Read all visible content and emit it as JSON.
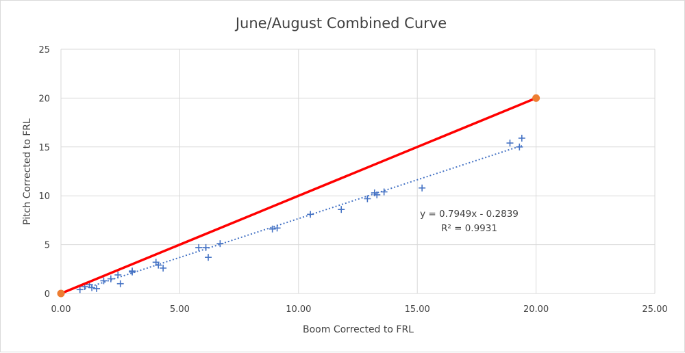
{
  "chart_data": {
    "type": "scatter",
    "title": "June/August Combined Curve",
    "xlabel": "Boom Corrected to FRL",
    "ylabel": "Pitch Corrected to FRL",
    "xlim": [
      0,
      25
    ],
    "ylim": [
      0,
      25
    ],
    "x_ticks": [
      "0.00",
      "5.00",
      "10.00",
      "15.00",
      "20.00",
      "25.00"
    ],
    "y_ticks": [
      "0",
      "5",
      "10",
      "15",
      "20",
      "25"
    ],
    "grid": true,
    "legend": "none",
    "series": [
      {
        "marker": "cross",
        "color": "#4472c4",
        "points": [
          [
            0.8,
            0.4
          ],
          [
            1.0,
            0.7
          ],
          [
            1.2,
            0.9
          ],
          [
            1.3,
            0.6
          ],
          [
            1.5,
            0.5
          ],
          [
            1.8,
            1.3
          ],
          [
            2.1,
            1.5
          ],
          [
            2.4,
            1.9
          ],
          [
            2.5,
            1.0
          ],
          [
            3.0,
            2.3
          ],
          [
            3.0,
            2.2
          ],
          [
            4.0,
            3.2
          ],
          [
            4.1,
            2.9
          ],
          [
            4.3,
            2.6
          ],
          [
            5.8,
            4.7
          ],
          [
            6.1,
            4.7
          ],
          [
            6.2,
            3.7
          ],
          [
            6.7,
            5.1
          ],
          [
            8.9,
            6.6
          ],
          [
            9.1,
            6.7
          ],
          [
            10.5,
            8.1
          ],
          [
            11.8,
            8.6
          ],
          [
            12.9,
            9.7
          ],
          [
            13.2,
            10.3
          ],
          [
            13.3,
            10.1
          ],
          [
            13.6,
            10.4
          ],
          [
            15.2,
            10.8
          ],
          [
            18.9,
            15.4
          ],
          [
            19.3,
            15.0
          ],
          [
            19.4,
            15.9
          ]
        ]
      },
      {
        "color": "#ff0000",
        "points": [
          [
            0,
            0
          ],
          [
            20,
            20
          ]
        ],
        "endpoint_color": "#ed7d31"
      }
    ],
    "trendline": {
      "type": "linear",
      "slope": 0.7949,
      "intercept": -0.2839,
      "x_range": [
        1.0,
        19.4
      ],
      "color": "#4472c4",
      "equation_label": "y = 0.7949x - 0.2839",
      "r2_label": "R² = 0.9931"
    }
  }
}
